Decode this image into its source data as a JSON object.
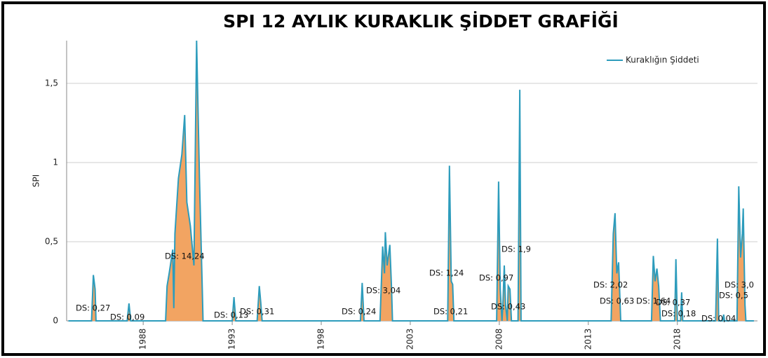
{
  "chart_data": {
    "type": "area",
    "title": "SPI 12 AYLIK KURAKLIK ŞİDDET GRAFİĞİ",
    "y_label": "SPI",
    "legend_position": "upper right",
    "grid": true,
    "xlim": [
      1983.7,
      2022.5
    ],
    "ylim": [
      0,
      1.77
    ],
    "xticks": [
      1988,
      1993,
      1998,
      2003,
      2008,
      2013,
      2018
    ],
    "yticks": [
      0,
      {
        "value": 0.5,
        "label": "0,5"
      },
      1,
      {
        "value": 1.5,
        "label": "1,5"
      }
    ],
    "series": [
      {
        "name": "Kuraklığın Şiddeti",
        "color": "#2d9cbc",
        "fill": "#f2a462",
        "x": [
          1983.8,
          1985.1,
          1985.2,
          1985.3,
          1985.35,
          1987.1,
          1987.2,
          1987.3,
          1989.26,
          1989.34,
          1989.46,
          1989.66,
          1989.72,
          1989.78,
          1989.98,
          1990.17,
          1990.33,
          1990.45,
          1990.65,
          1990.85,
          1991.0,
          1991.16,
          1991.32,
          1991.36,
          1993.0,
          1993.1,
          1993.2,
          1994.4,
          1994.52,
          1994.6,
          1994.68,
          2000.2,
          2000.3,
          2000.4,
          2001.3,
          2001.45,
          2001.55,
          2001.6,
          2001.7,
          2001.85,
          2001.95,
          2002.0,
          2005.1,
          2005.2,
          2005.3,
          2005.38,
          2005.45,
          2007.85,
          2007.96,
          2008.05,
          2008.15,
          2008.2,
          2008.28,
          2008.35,
          2008.45,
          2008.5,
          2008.6,
          2008.68,
          2009.05,
          2009.15,
          2009.22,
          2014.28,
          2014.4,
          2014.5,
          2014.6,
          2014.7,
          2014.82,
          2016.55,
          2016.65,
          2016.75,
          2016.85,
          2016.95,
          2017.05,
          2017.85,
          2017.92,
          2018.0,
          2018.18,
          2018.24,
          2018.3,
          2020.15,
          2020.25,
          2020.32,
          2020.55,
          2020.6,
          2020.65,
          2021.35,
          2021.45,
          2021.55,
          2021.65,
          2021.7,
          2021.8,
          2021.85,
          2022.3
        ],
        "values": [
          0,
          0,
          0.29,
          0.2,
          0,
          0,
          0.11,
          0,
          0,
          0.22,
          0.3,
          0.45,
          0.08,
          0.55,
          0.9,
          1.05,
          1.3,
          0.75,
          0.6,
          0.35,
          1.77,
          0.9,
          0.2,
          0,
          0,
          0.15,
          0,
          0,
          0.22,
          0.12,
          0,
          0,
          0.24,
          0,
          0,
          0.47,
          0.3,
          0.56,
          0.35,
          0.48,
          0.2,
          0,
          0,
          0.98,
          0.25,
          0.23,
          0,
          0,
          0.88,
          0.2,
          0,
          0.1,
          0.35,
          0.1,
          0,
          0.22,
          0.2,
          0,
          0,
          1.46,
          0,
          0,
          0.55,
          0.68,
          0.3,
          0.37,
          0,
          0,
          0.41,
          0.25,
          0.33,
          0.22,
          0,
          0,
          0.39,
          0,
          0,
          0.18,
          0,
          0,
          0.52,
          0,
          0,
          0.04,
          0,
          0,
          0.85,
          0.4,
          0.55,
          0.71,
          0.1,
          0,
          0
        ]
      }
    ],
    "annotations": [
      "DS: 0,27",
      "DS: 0,09",
      "DS: 14,24",
      "DS: 0,13",
      "DS: 0,31",
      "DS: 0,24",
      "DS: 3,04",
      "DS: 1,24",
      "DS: 0,21",
      "DS: 0,97",
      "DS: 0,43",
      "DS: 1,9",
      "DS: 2,02",
      "DS: 0,63",
      "DS: 1,64",
      "DS: 0,37",
      "DS: 0,18",
      "DS: 0,5",
      "DS: 3,0",
      "DS: 0,04"
    ]
  }
}
